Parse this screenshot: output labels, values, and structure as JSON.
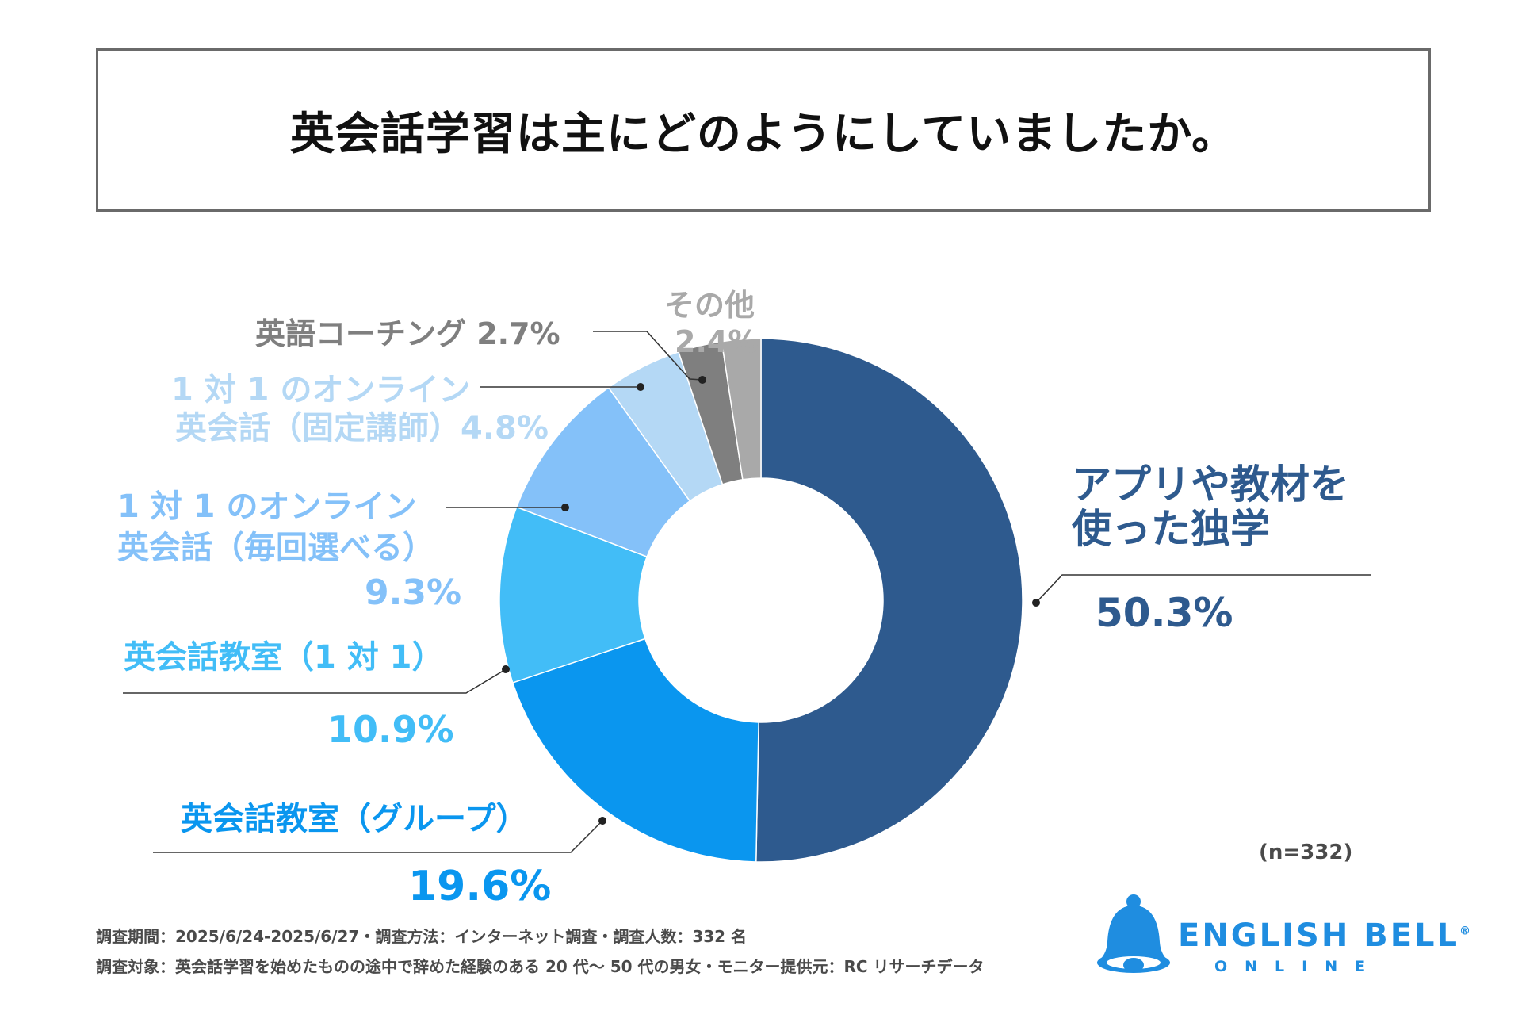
{
  "title": "英会話学習は主にどのようにしていましたか。",
  "chart_data": {
    "type": "pie",
    "title": "英会話学習は主にどのようにしていましたか。",
    "n_label": "(n=332)",
    "slices": [
      {
        "name_lines": [
          "アプリや教材を",
          "使った独学"
        ],
        "value": 50.3,
        "value_label": "50.3%",
        "color": "#2e5a8e"
      },
      {
        "name_lines": [
          "英会話教室（グループ）"
        ],
        "value": 19.6,
        "value_label": "19.6%",
        "color": "#0a96ef"
      },
      {
        "name_lines": [
          "英会話教室（1 対 1）"
        ],
        "value": 10.9,
        "value_label": "10.9%",
        "color": "#42bdf7"
      },
      {
        "name_lines": [
          "1 対 1 のオンライン",
          "英会話（毎回選べる）"
        ],
        "value": 9.3,
        "value_label": "9.3%",
        "color": "#84c1f9"
      },
      {
        "name_lines": [
          "1 対 1 のオンライン",
          "英会話（固定講師）4.8%"
        ],
        "value": 4.8,
        "value_label": "",
        "color": "#b4d8f5"
      },
      {
        "name_lines": [
          "英語コーチング 2.7%"
        ],
        "value": 2.7,
        "value_label": "",
        "color": "#7f7f7f"
      },
      {
        "name_lines": [
          "その他"
        ],
        "value": 2.4,
        "value_label": "2.4%",
        "color": "#a9a9a9"
      }
    ]
  },
  "footer": {
    "line1": "調査期間：2025/6/24-2025/6/27・調査方法：インターネット調査・調査人数：332 名",
    "line2": "調査対象：英会話学習を始めたものの途中で辞めた経験のある 20 代〜 50 代の男女・モニター提供元：RC リサーチデータ"
  },
  "logo": {
    "name": "ENGLISH BELL",
    "sub": "ONLINE",
    "icon": "bell-icon",
    "color": "#1f8de0",
    "reg": "®"
  }
}
